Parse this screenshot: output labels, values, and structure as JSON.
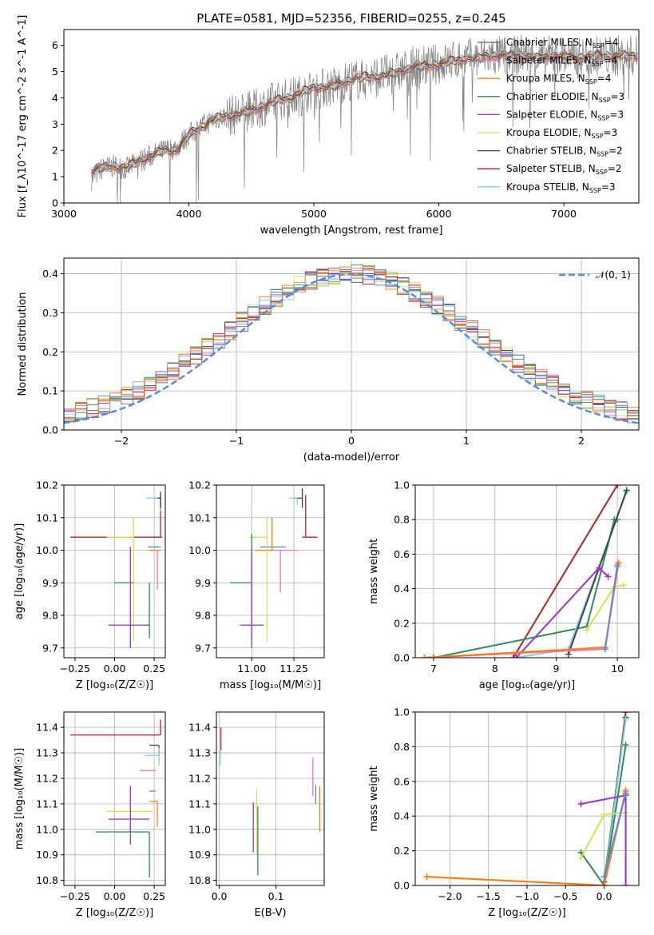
{
  "title": "PLATE=0581, MJD=52356, FIBERID=0255, z=0.245",
  "models": [
    {
      "name": "Chabrier MILES",
      "nssp": "4",
      "color": "#000000",
      "legend_label": "Chabrier MILES, N$_{SSP}$=4"
    },
    {
      "name": "Salpeter MILES",
      "nssp": "4",
      "color": "#e377c2",
      "legend_label": "Salpeter MILES, N$_{SSP}$=4"
    },
    {
      "name": "Kroupa MILES",
      "nssp": "4",
      "color": "#ff7f0e",
      "legend_label": "Kroupa MILES, N$_{SSP}$=4"
    },
    {
      "name": "Chabrier ELODIE",
      "nssp": "3",
      "color": "#2ca02c",
      "legend_label": "Chabrier ELODIE, N$_{SSP}$=3"
    },
    {
      "name": "Salpeter ELODIE",
      "nssp": "3",
      "color": "#9467bd",
      "legend_label": "Salpeter ELODIE, N$_{SSP}$=3"
    },
    {
      "name": "Kroupa ELODIE",
      "nssp": "3",
      "color": "#dbdb8d",
      "legend_label": "Kroupa ELODIE, N$_{SSP}$=3"
    },
    {
      "name": "Chabrier STELIB",
      "nssp": "2",
      "color": "#555555",
      "legend_label": "Chabrier STELIB, N$_{SSP}$=2"
    },
    {
      "name": "Salpeter STELIB",
      "nssp": "2",
      "color": "#b22222",
      "legend_label": "Salpeter STELIB, N$_{SSP}$=2"
    },
    {
      "name": "Kroupa STELIB",
      "nssp": "3",
      "color": "#7fd3dd",
      "legend_label": "Kroupa STELIB, N$_{SSP}$=3"
    }
  ],
  "legend_text": [
    "Chabrier MILES, N",
    "Salpeter MILES, N",
    "Kroupa MILES, N",
    "Chabrier ELODIE, N",
    "Salpeter ELODIE, N",
    "Kroupa ELODIE, N",
    "Chabrier STELIB, N",
    "Salpeter STELIB, N",
    "Kroupa STELIB, N"
  ],
  "legend_sub": "SSP",
  "legend_nssp": [
    "=4",
    "=4",
    "=4",
    "=3",
    "=3",
    "=3",
    "=2",
    "=2",
    "=3"
  ],
  "legend_colors": [
    "#666666",
    "#e377c2",
    "#ff7f0e",
    "#2e8b57",
    "#9932cc",
    "#d4e157",
    "#444444",
    "#b22222",
    "#7fd3dd"
  ],
  "chart_data": [
    {
      "type": "line",
      "id": "spectrum",
      "xlabel": "wavelength [Angstrom, rest frame]",
      "ylabel": "Flux [f_λ10^-17 erg cm^-2 s^-1 A^-1]",
      "xlim": [
        3000,
        7600
      ],
      "ylim": [
        0,
        6.6
      ],
      "xticks": [
        3000,
        4000,
        5000,
        6000,
        7000
      ],
      "yticks": [
        0,
        1,
        2,
        3,
        4,
        5,
        6
      ],
      "grid": false,
      "legend_position": "top-right",
      "series": [
        {
          "name": "data",
          "color": "#808080",
          "x": [
            3220,
            3300,
            3400,
            3500,
            3600,
            3700,
            3800,
            3900,
            4000,
            4100,
            4200,
            4300,
            4400,
            4500,
            4600,
            4700,
            4800,
            4900,
            5000,
            5100,
            5200,
            5300,
            5400,
            5500,
            5600,
            5700,
            5800,
            5900,
            6000,
            6100,
            6200,
            6300,
            6400,
            6500,
            6600,
            6700,
            6800,
            6900,
            7000,
            7100,
            7200,
            7300,
            7400,
            7500,
            7600
          ],
          "y": [
            0.9,
            1.3,
            1.4,
            1.3,
            1.6,
            1.8,
            2.0,
            2.1,
            2.6,
            2.9,
            3.2,
            3.3,
            3.4,
            3.5,
            3.7,
            3.9,
            4.0,
            4.1,
            4.3,
            4.4,
            4.5,
            4.7,
            4.7,
            4.8,
            4.9,
            5.0,
            5.2,
            5.2,
            5.3,
            5.4,
            5.5,
            5.5,
            5.6,
            5.6,
            5.6,
            5.7,
            5.5,
            5.6,
            5.6,
            5.5,
            5.6,
            5.6,
            5.6,
            5.6,
            5.6
          ]
        },
        {
          "name": "model",
          "color": "#c0392b",
          "x": [
            3220,
            3300,
            3400,
            3500,
            3600,
            3700,
            3800,
            3900,
            4000,
            4100,
            4200,
            4300,
            4400,
            4500,
            4600,
            4700,
            4800,
            4900,
            5000,
            5100,
            5200,
            5300,
            5400,
            5500,
            5600,
            5700,
            5800,
            5900,
            6000,
            6100,
            6200,
            6300,
            6400,
            6500,
            6600,
            6700,
            6800,
            6900,
            7000,
            7100,
            7200,
            7300,
            7400,
            7500,
            7600
          ],
          "y": [
            1.2,
            1.35,
            1.4,
            1.35,
            1.6,
            1.8,
            2.0,
            2.0,
            2.6,
            2.9,
            3.2,
            3.3,
            3.4,
            3.5,
            3.7,
            3.9,
            4.0,
            4.2,
            4.4,
            4.4,
            4.5,
            4.7,
            4.8,
            4.8,
            4.9,
            5.0,
            5.2,
            5.2,
            5.3,
            5.4,
            5.5,
            5.5,
            5.6,
            5.6,
            5.6,
            5.6,
            5.5,
            5.6,
            5.6,
            5.5,
            5.6,
            5.6,
            5.6,
            5.6,
            5.6
          ]
        }
      ]
    },
    {
      "type": "line",
      "id": "residuals",
      "xlabel": "(data-model)/error",
      "ylabel": "Normed distribution",
      "xlim": [
        -2.5,
        2.5
      ],
      "ylim": [
        0,
        0.44
      ],
      "xticks": [
        -2,
        -1,
        0,
        1,
        2
      ],
      "yticks": [
        0.0,
        0.1,
        0.2,
        0.3,
        0.4
      ],
      "grid": true,
      "legend_position": "top-right",
      "legend_label": "𝒩(0, 1)",
      "gaussian": {
        "mean": 0,
        "sigma": 1,
        "color": "#5b8bd6"
      }
    },
    {
      "type": "scatter",
      "id": "age_vs_Z",
      "xlabel": "Z [log₁₀(Z/Z☉)]",
      "ylabel": "age  [log₁₀(age/yr)]",
      "xlim": [
        -0.32,
        0.32
      ],
      "ylim": [
        9.67,
        10.2
      ],
      "xticks": [
        -0.25,
        0.0,
        0.25
      ],
      "yticks": [
        9.7,
        9.8,
        9.9,
        10.0,
        10.1,
        10.2
      ],
      "grid": true,
      "points": [
        {
          "x": 0.29,
          "y": 10.04,
          "xerr": [
            0.57,
            0.01
          ],
          "yerr": [
            0.0,
            0.13
          ],
          "color": "#b22222"
        },
        {
          "x": 0.29,
          "y": 10.16,
          "xerr": [
            0.09,
            0.0
          ],
          "yerr": [
            0.04,
            0.0
          ],
          "color": "#7fd3dd"
        },
        {
          "x": 0.29,
          "y": 10.16,
          "xerr": [
            0.02,
            0.0
          ],
          "yerr": [
            0.03,
            0.02
          ],
          "color": "#444444"
        },
        {
          "x": 0.24,
          "y": 10.01,
          "xerr": [
            0.03,
            0.05
          ],
          "yerr": [
            0.0,
            0.0
          ],
          "color": "#5b8bd6"
        },
        {
          "x": 0.27,
          "y": 10.0,
          "xerr": [
            0.05,
            0.02
          ],
          "yerr": [
            0.0,
            0.0
          ],
          "color": "#ff7f0e"
        },
        {
          "x": 0.27,
          "y": 10.0,
          "xerr": [
            0.0,
            0.0
          ],
          "yerr": [
            0.12,
            0.0
          ],
          "color": "#e377c2"
        },
        {
          "x": 0.12,
          "y": 10.04,
          "xerr": [
            0.17,
            0.0
          ],
          "yerr": [
            0.32,
            0.06
          ],
          "color": "#d4e157"
        },
        {
          "x": 0.12,
          "y": 9.9,
          "xerr": [
            0.12,
            0.0
          ],
          "yerr": [
            0.0,
            0.0
          ],
          "color": "#2e8b57"
        },
        {
          "x": 0.22,
          "y": 9.9,
          "xerr": [
            0.0,
            0.0
          ],
          "yerr": [
            0.17,
            0.0
          ],
          "color": "#2e8b57"
        },
        {
          "x": 0.1,
          "y": 9.77,
          "xerr": [
            0.14,
            0.12
          ],
          "yerr": [
            0.07,
            0.24
          ],
          "color": "#9932cc"
        }
      ]
    },
    {
      "type": "scatter",
      "id": "age_vs_mass",
      "xlabel": "mass [log₁₀(M/M☉)]",
      "ylabel": "",
      "xlim": [
        10.79,
        11.43
      ],
      "ylim": [
        9.67,
        10.2
      ],
      "xticks": [
        11.0,
        11.25
      ],
      "yticks": [
        9.7,
        9.8,
        9.9,
        10.0,
        10.1,
        10.2
      ],
      "grid": true
    },
    {
      "type": "line",
      "id": "massweight_vs_age",
      "xlabel": "age  [log₁₀(age/yr)]",
      "ylabel": "mass weight",
      "xlim": [
        6.7,
        10.35
      ],
      "ylim": [
        0.0,
        1.0
      ],
      "xticks": [
        7,
        8,
        9,
        10
      ],
      "yticks": [
        0.0,
        0.2,
        0.4,
        0.6,
        0.8,
        1.0
      ],
      "grid": true,
      "series": [
        {
          "color": "#b22222",
          "x": [
            8.3,
            10.0
          ],
          "y": [
            0.0,
            1.0
          ]
        },
        {
          "color": "#2e8b57",
          "x": [
            7.0,
            9.5,
            9.95,
            10.0
          ],
          "y": [
            0.0,
            0.18,
            0.8,
            0.8
          ]
        },
        {
          "color": "#7fd3dd",
          "x": [
            8.35,
            9.2,
            10.15
          ],
          "y": [
            0.0,
            0.05,
            0.96
          ]
        },
        {
          "color": "#444444",
          "x": [
            9.2,
            10.15
          ],
          "y": [
            0.02,
            0.97
          ]
        },
        {
          "color": "#9932cc",
          "x": [
            8.35,
            9.7,
            9.85
          ],
          "y": [
            0.0,
            0.52,
            0.47
          ]
        },
        {
          "color": "#d4e157",
          "x": [
            9.5,
            9.95,
            10.1
          ],
          "y": [
            0.16,
            0.41,
            0.42
          ]
        },
        {
          "color": "#e377c2",
          "x": [
            6.85,
            9.8,
            10.0
          ],
          "y": [
            0.0,
            0.05,
            0.54
          ]
        },
        {
          "color": "#ff7f0e",
          "x": [
            6.85,
            9.8,
            10.02
          ],
          "y": [
            0.0,
            0.06,
            0.55
          ]
        },
        {
          "color": "#5b8bd6",
          "x": [
            9.8,
            10.0
          ],
          "y": [
            0.05,
            0.53
          ]
        }
      ]
    },
    {
      "type": "scatter",
      "id": "mass_vs_Z",
      "xlabel": "Z [log₁₀(Z/Z☉)]",
      "ylabel": "mass [log₁₀(M/M☉)]",
      "xlim": [
        -0.32,
        0.32
      ],
      "ylim": [
        10.78,
        11.46
      ],
      "xticks": [
        -0.25,
        0.0,
        0.25
      ],
      "yticks": [
        10.8,
        10.9,
        11.0,
        11.1,
        11.2,
        11.3,
        11.4
      ],
      "grid": true,
      "points": [
        {
          "x": 0.29,
          "y": 11.37,
          "xerr": [
            0.57,
            0.0
          ],
          "yerr": [
            0.0,
            0.06
          ],
          "color": "#b22222"
        },
        {
          "x": 0.28,
          "y": 11.33,
          "xerr": [
            0.06,
            0.0
          ],
          "yerr": [
            0.04,
            0.0
          ],
          "color": "#444444"
        },
        {
          "x": 0.28,
          "y": 11.29,
          "xerr": [
            0.09,
            0.0
          ],
          "yerr": [
            0.04,
            0.03
          ],
          "color": "#7fd3dd"
        },
        {
          "x": 0.26,
          "y": 11.23,
          "xerr": [
            0.1,
            0.0
          ],
          "yerr": [
            0.0,
            0.0
          ],
          "color": "#e377c2"
        },
        {
          "x": 0.26,
          "y": 11.15,
          "xerr": [
            0.04,
            0.0
          ],
          "yerr": [
            0.0,
            0.0
          ],
          "color": "#5b8bd6"
        },
        {
          "x": 0.27,
          "y": 11.11,
          "xerr": [
            0.05,
            0.0
          ],
          "yerr": [
            0.1,
            0.0
          ],
          "color": "#ff7f0e"
        },
        {
          "x": 0.12,
          "y": 11.07,
          "xerr": [
            0.17,
            0.12
          ],
          "yerr": [
            0.0,
            0.0
          ],
          "color": "#d4e157"
        },
        {
          "x": 0.1,
          "y": 11.04,
          "xerr": [
            0.14,
            0.12
          ],
          "yerr": [
            0.1,
            0.13
          ],
          "color": "#9932cc"
        },
        {
          "x": 0.22,
          "y": 10.99,
          "xerr": [
            0.34,
            0.0
          ],
          "yerr": [
            0.18,
            0.0
          ],
          "color": "#2e8b57"
        }
      ]
    },
    {
      "type": "scatter",
      "id": "mass_vs_EBV",
      "xlabel": "E(B-V)",
      "ylabel": "",
      "xlim": [
        -0.005,
        0.185
      ],
      "ylim": [
        10.78,
        11.46
      ],
      "xticks": [
        0.0,
        0.1
      ],
      "yticks": [
        10.8,
        10.9,
        11.0,
        11.1,
        11.2,
        11.3,
        11.4
      ],
      "grid": true
    },
    {
      "type": "line",
      "id": "massweight_vs_Z",
      "xlabel": "Z [log₁₀(Z/Z☉)]",
      "ylabel": "mass weight",
      "xlim": [
        -2.45,
        0.45
      ],
      "ylim": [
        0.0,
        1.0
      ],
      "xticks": [
        -2.0,
        -1.5,
        -1.0,
        -0.5,
        0.0
      ],
      "yticks": [
        0.0,
        0.2,
        0.4,
        0.6,
        0.8,
        1.0
      ],
      "grid": true,
      "series": [
        {
          "color": "#b22222",
          "x": [
            0.0,
            0.28
          ],
          "y": [
            0.0,
            1.0
          ]
        },
        {
          "color": "#444444",
          "x": [
            0.0,
            0.28
          ],
          "y": [
            0.02,
            0.97
          ]
        },
        {
          "color": "#7fd3dd",
          "x": [
            0.0,
            0.28
          ],
          "y": [
            0.0,
            0.96
          ]
        },
        {
          "color": "#2e8b57",
          "x": [
            -0.3,
            0.0,
            0.28
          ],
          "y": [
            0.19,
            0.0,
            0.81
          ]
        },
        {
          "color": "#d4e157",
          "x": [
            -0.3,
            0.0,
            0.28
          ],
          "y": [
            0.16,
            0.41,
            0.42
          ]
        },
        {
          "color": "#9932cc",
          "x": [
            -0.3,
            0.28,
            0.28
          ],
          "y": [
            0.47,
            0.52,
            0.0
          ]
        },
        {
          "color": "#e377c2",
          "x": [
            -2.3,
            0.0,
            0.28
          ],
          "y": [
            0.05,
            0.0,
            0.54
          ]
        },
        {
          "color": "#ff7f0e",
          "x": [
            -2.3,
            0.0,
            0.28
          ],
          "y": [
            0.05,
            0.0,
            0.55
          ]
        },
        {
          "color": "#5b8bd6",
          "x": [
            0.0,
            0.28
          ],
          "y": [
            0.05,
            0.53
          ]
        }
      ]
    }
  ]
}
